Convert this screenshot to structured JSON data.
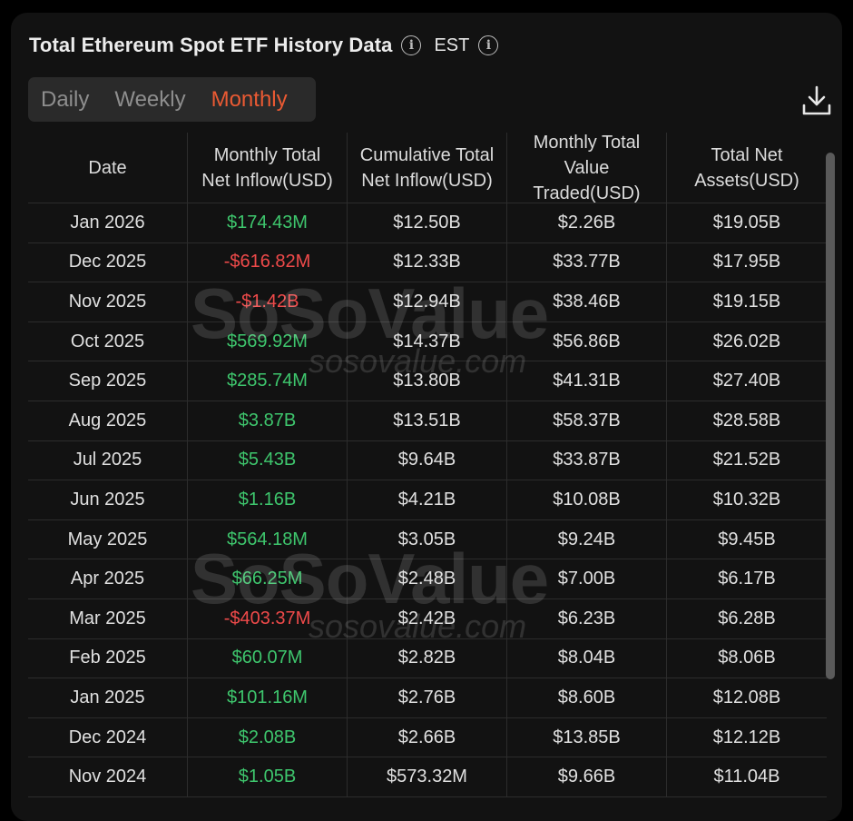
{
  "header": {
    "title": "Total Ethereum Spot ETF History Data",
    "timezone": "EST"
  },
  "tabs": [
    {
      "label": "Daily",
      "active": false
    },
    {
      "label": "Weekly",
      "active": false
    },
    {
      "label": "Monthly",
      "active": true
    }
  ],
  "table": {
    "headers": [
      [
        "Date"
      ],
      [
        "Monthly Total",
        "Net Inflow(USD)"
      ],
      [
        "Cumulative Total",
        "Net Inflow(USD)"
      ],
      [
        "Monthly Total",
        "Value",
        "Traded(USD)"
      ],
      [
        "Total Net",
        "Assets(USD)"
      ]
    ],
    "rows": [
      [
        "Jan 2026",
        "$174.43M",
        "$12.50B",
        "$2.26B",
        "$19.05B"
      ],
      [
        "Dec 2025",
        "-$616.82M",
        "$12.33B",
        "$33.77B",
        "$17.95B"
      ],
      [
        "Nov 2025",
        "-$1.42B",
        "$12.94B",
        "$38.46B",
        "$19.15B"
      ],
      [
        "Oct 2025",
        "$569.92M",
        "$14.37B",
        "$56.86B",
        "$26.02B"
      ],
      [
        "Sep 2025",
        "$285.74M",
        "$13.80B",
        "$41.31B",
        "$27.40B"
      ],
      [
        "Aug 2025",
        "$3.87B",
        "$13.51B",
        "$58.37B",
        "$28.58B"
      ],
      [
        "Jul 2025",
        "$5.43B",
        "$9.64B",
        "$33.87B",
        "$21.52B"
      ],
      [
        "Jun 2025",
        "$1.16B",
        "$4.21B",
        "$10.08B",
        "$10.32B"
      ],
      [
        "May 2025",
        "$564.18M",
        "$3.05B",
        "$9.24B",
        "$9.45B"
      ],
      [
        "Apr 2025",
        "$66.25M",
        "$2.48B",
        "$7.00B",
        "$6.17B"
      ],
      [
        "Mar 2025",
        "-$403.37M",
        "$2.42B",
        "$6.23B",
        "$6.28B"
      ],
      [
        "Feb 2025",
        "$60.07M",
        "$2.82B",
        "$8.04B",
        "$8.06B"
      ],
      [
        "Jan 2025",
        "$101.16M",
        "$2.76B",
        "$8.60B",
        "$12.08B"
      ],
      [
        "Dec 2024",
        "$2.08B",
        "$2.66B",
        "$13.85B",
        "$12.12B"
      ],
      [
        "Nov 2024",
        "$1.05B",
        "$573.32M",
        "$9.66B",
        "$11.04B"
      ]
    ]
  },
  "watermark": {
    "brand": "SoSoValue",
    "url": "sosovalue.com"
  },
  "colors": {
    "accent": "#ea5a33",
    "positive": "#3ec66d",
    "negative": "#ef4a4a",
    "background": "#121212"
  },
  "icons": {
    "info": "info-icon",
    "download": "download-icon"
  }
}
